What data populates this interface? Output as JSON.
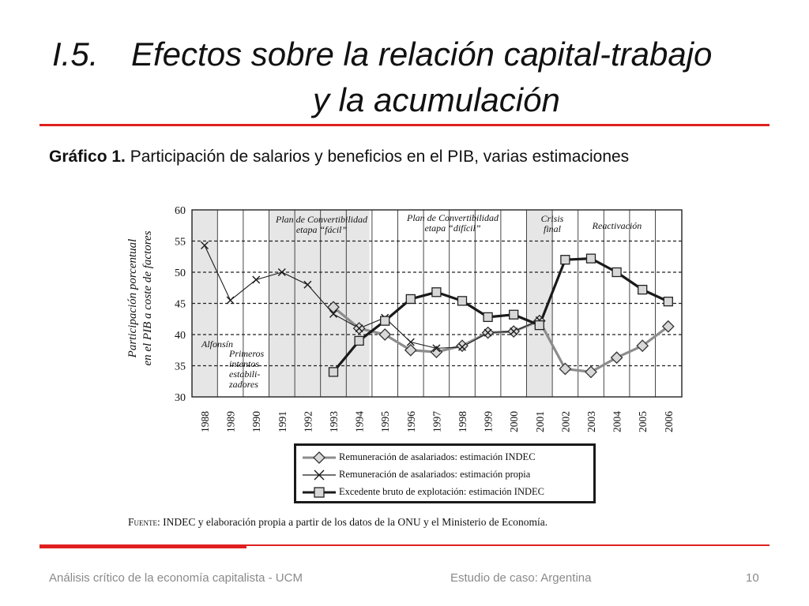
{
  "slide": {
    "title_number": "I.5.",
    "title_line1": "Efectos sobre la relación capital-trabajo",
    "title_line2": "y la acumulación",
    "subtitle_bold": "Gráfico 1.",
    "subtitle_text": " Participación de salarios y beneficios en el PIB, varias estimaciones",
    "source_label": "Fuente",
    "source_text": ": INDEC y elaboración propia a partir de los datos de la ONU y el Ministerio de Economía.",
    "footer_left": "Análisis crítico de la economía capitalista - UCM",
    "footer_center": "Estudio de caso: Argentina",
    "footer_page": "10",
    "accent_color": "#e02020"
  },
  "chart_data": {
    "type": "line",
    "title": "",
    "xlabel": "",
    "ylabel": "Participación porcentual en el PIB a coste de factores",
    "ylim": [
      30,
      60
    ],
    "yticks": [
      30,
      35,
      40,
      45,
      50,
      55,
      60
    ],
    "categories": [
      "1988",
      "1989",
      "1990",
      "1991",
      "1992",
      "1993",
      "1994",
      "1995",
      "1996",
      "1997",
      "1998",
      "1999",
      "2000",
      "2001",
      "2002",
      "2003",
      "2004",
      "2005",
      "2006"
    ],
    "grid": "dashed horizontal lines at 35, 40, 45, 50, 55",
    "shaded_periods": [
      {
        "from": "1988",
        "to": "1989",
        "label": "Alfonsín"
      },
      {
        "from": "1989",
        "to": "1990",
        "label": "Primeros intentos estabili- zadores"
      },
      {
        "from": "1991",
        "to": "1994",
        "label": "Plan de Convertibilidad etapa “fácil”"
      },
      {
        "from": "1994",
        "to": "2001",
        "label": "Plan de Convertibilidad etapa “difícil”"
      },
      {
        "from": "2001",
        "to": "2002",
        "label": "Crisis final"
      },
      {
        "from": "2002",
        "to": "2006",
        "label": "Reactivación"
      }
    ],
    "series": [
      {
        "name": "Remuneración de asalariados: estimación INDEC",
        "marker": "diamond",
        "color": "#8c8c8c",
        "x": [
          "1993",
          "1994",
          "1995",
          "1996",
          "1997",
          "1998",
          "1999",
          "2000",
          "2001",
          "2002",
          "2003",
          "2004",
          "2005",
          "2006"
        ],
        "values": [
          44.4,
          41.0,
          40.0,
          37.5,
          37.2,
          38.2,
          40.3,
          40.5,
          42.2,
          34.5,
          34.0,
          36.3,
          38.2,
          41.3
        ]
      },
      {
        "name": "Remuneración de asalariados: estimación propia",
        "marker": "x",
        "color": "#1a1a1a",
        "x": [
          "1988",
          "1989",
          "1990",
          "1991",
          "1992",
          "1993",
          "1994",
          "1995",
          "1996",
          "1997",
          "1998",
          "1999",
          "2000",
          "2001"
        ],
        "values": [
          54.3,
          45.5,
          48.8,
          50.0,
          48.0,
          43.3,
          41.0,
          42.7,
          38.8,
          37.8,
          38.0,
          40.3,
          40.5,
          42.3
        ]
      },
      {
        "name": "Excedente bruto de explotación: estimación INDEC",
        "marker": "square",
        "color": "#1a1a1a",
        "x": [
          "1993",
          "1994",
          "1995",
          "1996",
          "1997",
          "1998",
          "1999",
          "2000",
          "2001",
          "2002",
          "2003",
          "2004",
          "2005",
          "2006"
        ],
        "values": [
          34.0,
          39.0,
          42.2,
          45.7,
          46.8,
          45.4,
          42.8,
          43.2,
          41.5,
          52.0,
          52.2,
          50.0,
          47.2,
          45.3
        ]
      }
    ]
  }
}
